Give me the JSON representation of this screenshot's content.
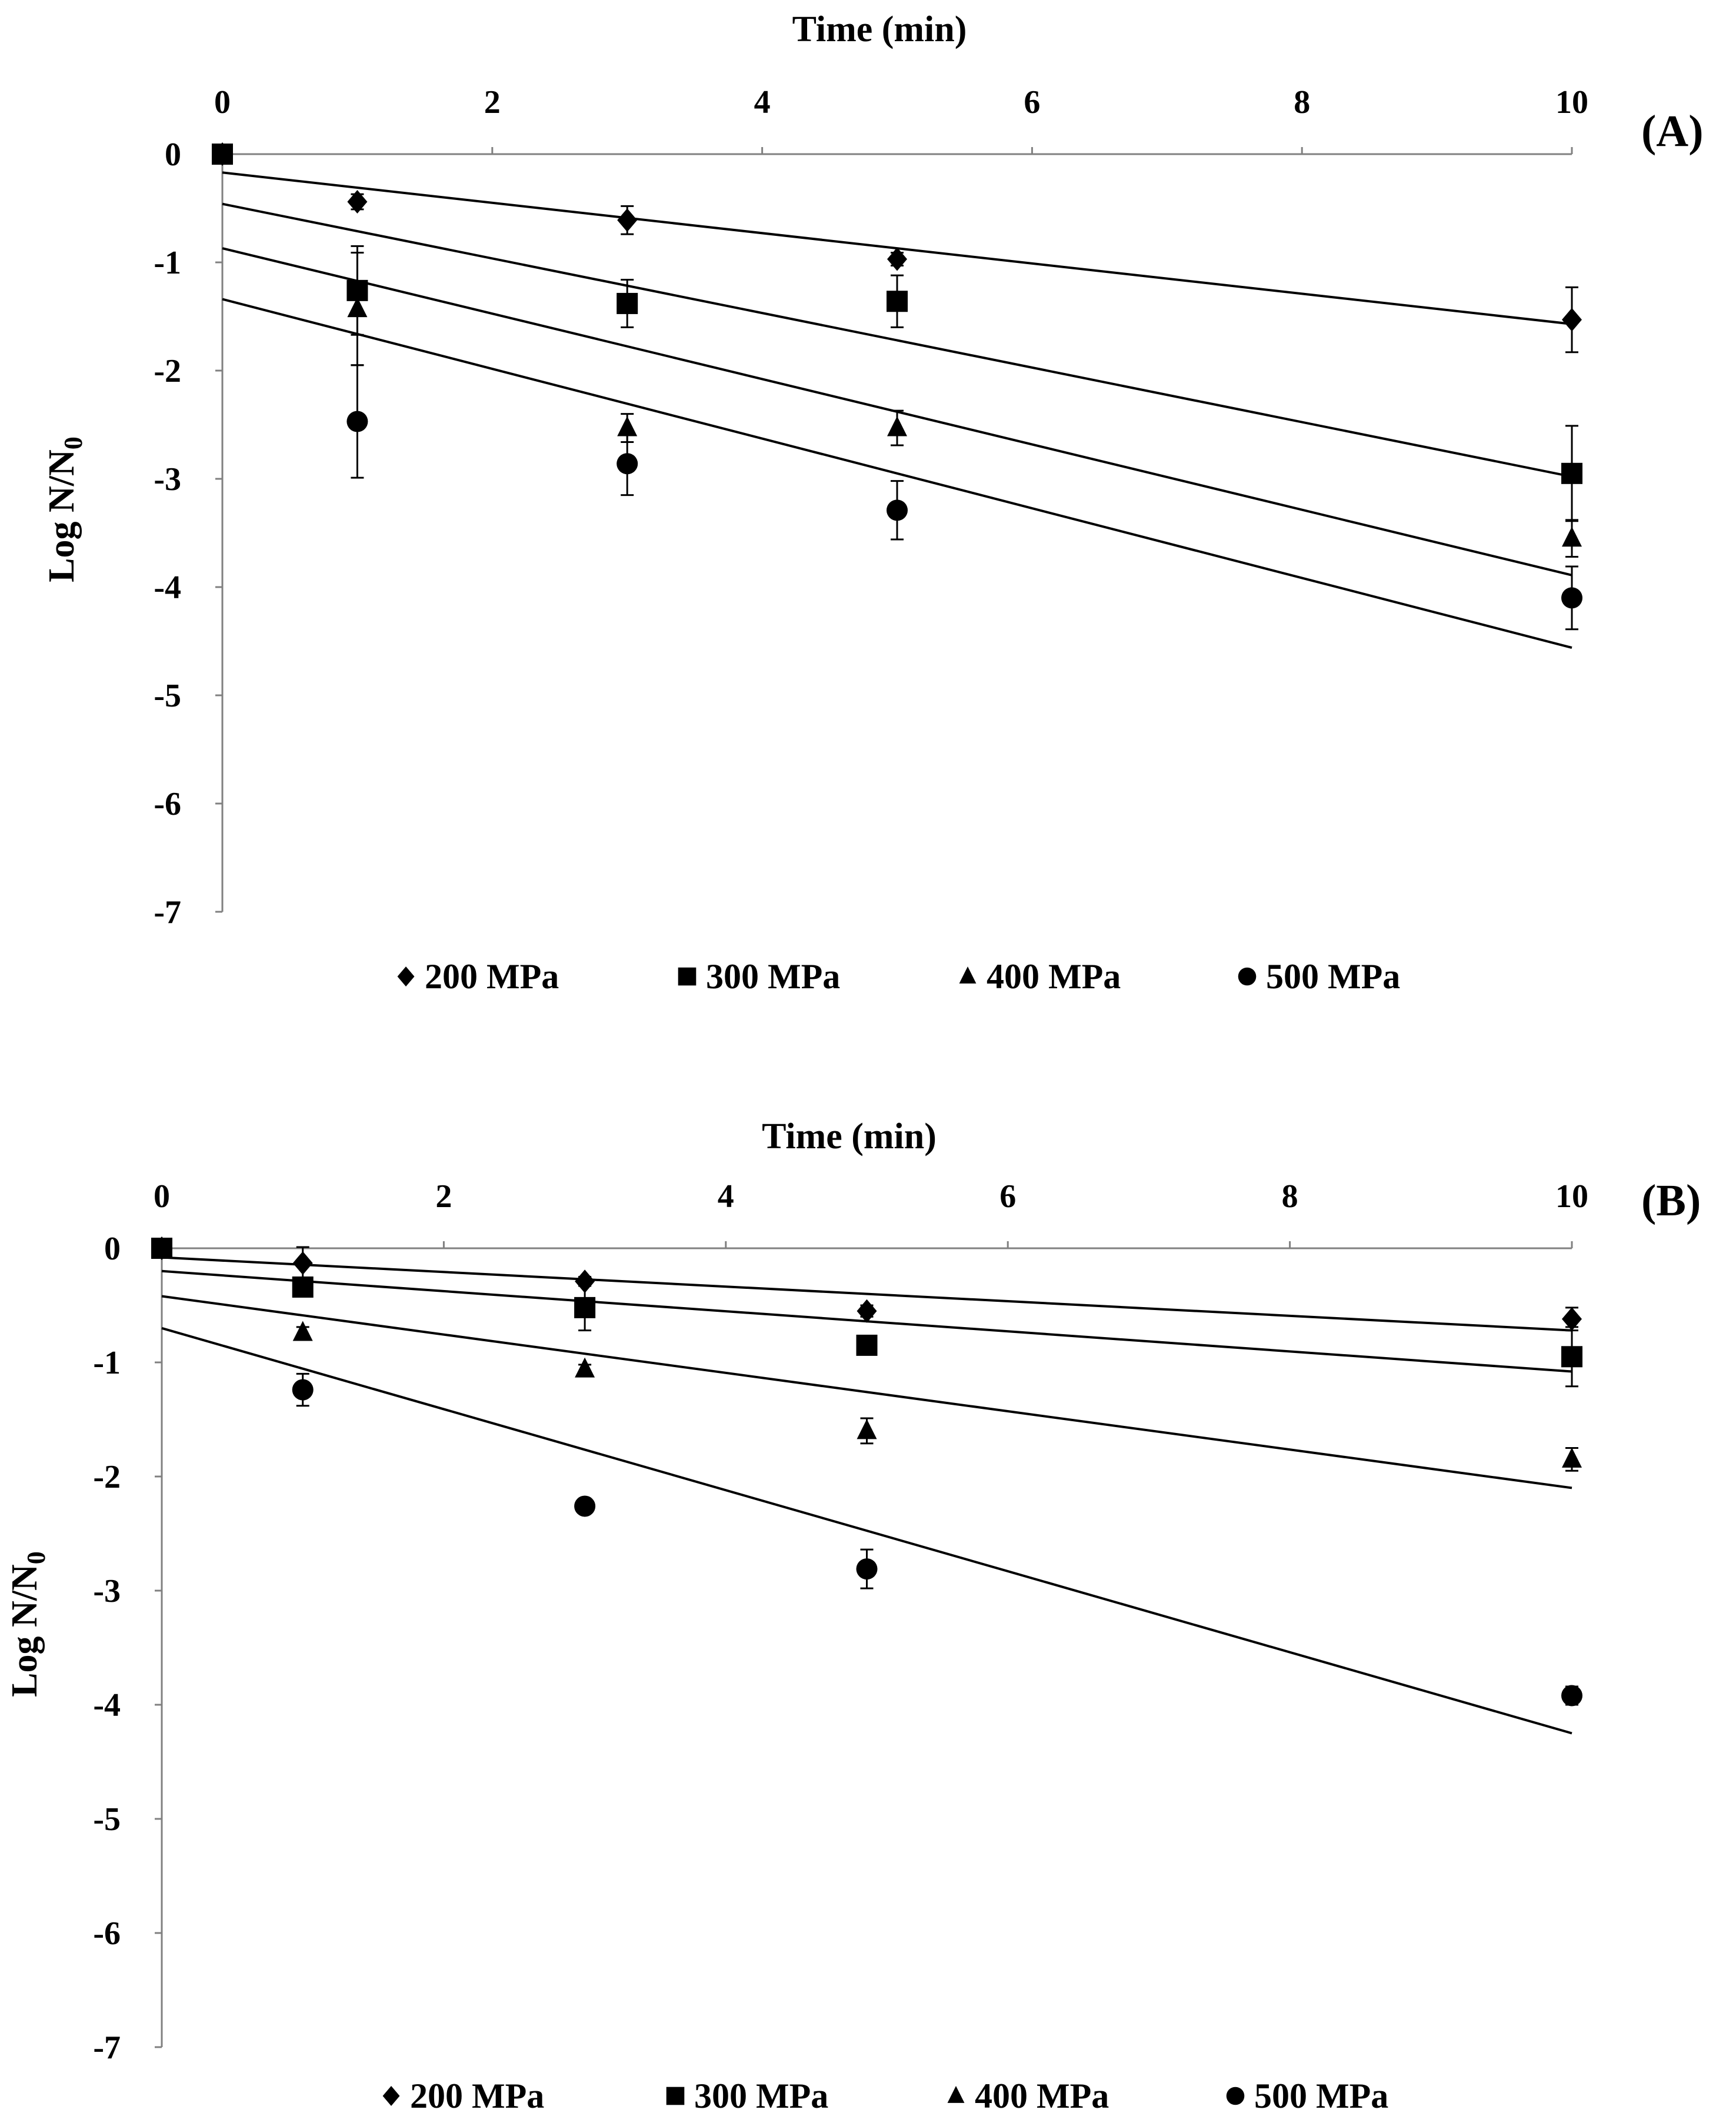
{
  "chart_data": [
    {
      "type": "scatter",
      "panel_label": "(A)",
      "xlabel": "Time (min)",
      "ylabel_main": "Log N/N",
      "ylabel_sub": "0",
      "xlim": [
        0,
        10
      ],
      "ylim": [
        -7,
        0
      ],
      "xticks": [
        0,
        2,
        4,
        6,
        8,
        10
      ],
      "yticks": [
        0,
        -1,
        -2,
        -3,
        -4,
        -5,
        -6,
        -7
      ],
      "x": [
        0,
        1,
        3,
        5,
        10
      ],
      "series": [
        {
          "name": "200 MPa",
          "marker": "diamond",
          "values": [
            0,
            -0.44,
            -0.61,
            -0.97,
            -1.53
          ],
          "errors": [
            0,
            0.07,
            0.13,
            0.06,
            0.3
          ],
          "fit": [
            -0.17,
            -1.57
          ]
        },
        {
          "name": "300 MPa",
          "marker": "square",
          "values": [
            0,
            -1.26,
            -1.38,
            -1.36,
            -2.95
          ],
          "errors": [
            0,
            0.41,
            0.22,
            0.24,
            0.44
          ],
          "fit": [
            -0.46,
            -2.98
          ]
        },
        {
          "name": "400 MPa",
          "marker": "triangle",
          "values": [
            0,
            -1.43,
            -2.53,
            -2.53,
            -3.55
          ],
          "errors": [
            0,
            0.52,
            0.13,
            0.16,
            0.17
          ],
          "fit": [
            -0.87,
            -3.89
          ]
        },
        {
          "name": "500 MPa",
          "marker": "circle",
          "values": [
            0,
            -2.47,
            -2.86,
            -3.29,
            -4.1
          ],
          "errors": [
            0,
            0.52,
            0.29,
            0.27,
            0.29
          ],
          "fit": [
            -1.34,
            -4.56
          ]
        }
      ]
    },
    {
      "type": "scatter",
      "panel_label": "(B)",
      "xlabel": "Time (min)",
      "ylabel_main": "Log N/N",
      "ylabel_sub": "0",
      "xlim": [
        0,
        10
      ],
      "ylim": [
        -7,
        0
      ],
      "xticks": [
        0,
        2,
        4,
        6,
        8,
        10
      ],
      "yticks": [
        0,
        -1,
        -2,
        -3,
        -4,
        -5,
        -6,
        -7
      ],
      "x": [
        0,
        1,
        3,
        5,
        10
      ],
      "series": [
        {
          "name": "200 MPa",
          "marker": "diamond",
          "values": [
            0,
            -0.13,
            -0.29,
            -0.55,
            -0.62
          ],
          "errors": [
            0,
            0.14,
            0.04,
            0.05,
            0.1
          ],
          "fit": [
            -0.08,
            -0.72
          ]
        },
        {
          "name": "300 MPa",
          "marker": "square",
          "values": [
            0,
            -0.34,
            -0.52,
            -0.85,
            -0.95
          ],
          "errors": [
            0,
            0.05,
            0.2,
            0.05,
            0.26
          ],
          "fit": [
            -0.2,
            -1.08
          ]
        },
        {
          "name": "400 MPa",
          "marker": "triangle",
          "values": [
            0,
            -0.74,
            -1.06,
            -1.6,
            -1.85
          ],
          "errors": [
            0,
            0.05,
            0.04,
            0.11,
            0.1
          ],
          "fit": [
            -0.42,
            -2.1
          ]
        },
        {
          "name": "500 MPa",
          "marker": "circle",
          "values": [
            0,
            -1.24,
            -2.26,
            -2.81,
            -3.92
          ],
          "errors": [
            0,
            0.14,
            0.04,
            0.17,
            0.08
          ],
          "fit": [
            -0.7,
            -4.25
          ]
        }
      ]
    }
  ]
}
